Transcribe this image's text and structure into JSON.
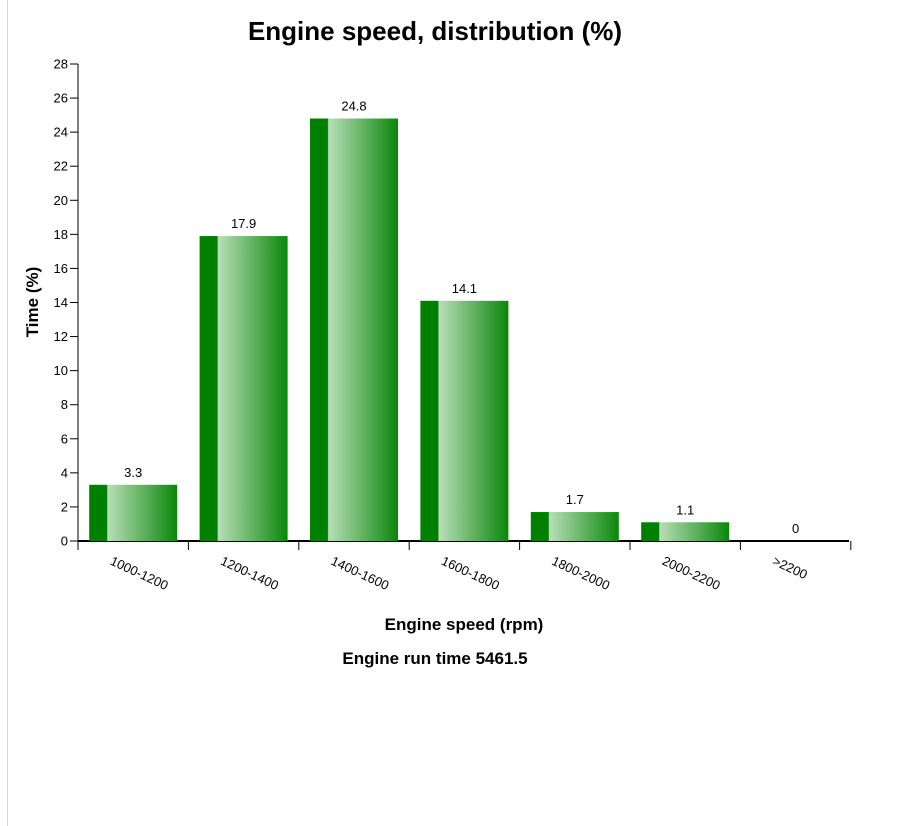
{
  "chart_data": {
    "type": "bar",
    "title": "Engine speed, distribution (%)",
    "xlabel": "Engine speed (rpm)",
    "ylabel": "Time (%)",
    "subtitle": "Engine run time 5461.5",
    "categories": [
      "1000-1200",
      "1200-1400",
      "1400-1600",
      "1600-1800",
      "1800-2000",
      "2000-2200",
      ">2200"
    ],
    "values": [
      3.3,
      17.9,
      24.8,
      14.1,
      1.7,
      1.1,
      0
    ],
    "data_labels": [
      "3.3",
      "17.9",
      "24.8",
      "14.1",
      "1.7",
      "1.1",
      "0"
    ],
    "ylim": [
      0,
      28
    ],
    "yticks": [
      0,
      2,
      4,
      6,
      8,
      10,
      12,
      14,
      16,
      18,
      20,
      22,
      24,
      26,
      28
    ],
    "grid": false,
    "colors": {
      "bar_dark": "#008000",
      "bar_mid": "#3a9e3a",
      "bar_light": "#b8deb8",
      "axis": "#000000"
    }
  }
}
